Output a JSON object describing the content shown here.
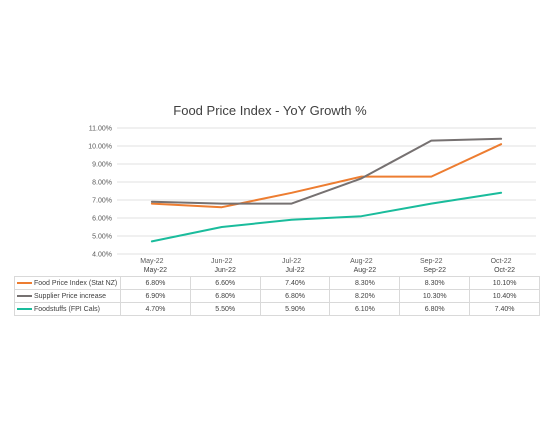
{
  "chart_data": {
    "type": "line",
    "title": "Food Price Index - YoY Growth %",
    "categories": [
      "May-22",
      "Jun-22",
      "Jul-22",
      "Aug-22",
      "Sep-22",
      "Oct-22"
    ],
    "series": [
      {
        "name": "Food Price Index (Stat NZ)",
        "color": "#ed7d31",
        "values": [
          6.8,
          6.6,
          7.4,
          8.3,
          8.3,
          10.1
        ],
        "labels": [
          "6.80%",
          "6.60%",
          "7.40%",
          "8.30%",
          "8.30%",
          "10.10%"
        ]
      },
      {
        "name": "Supplier Price increase",
        "color": "#767171",
        "values": [
          6.9,
          6.8,
          6.8,
          8.2,
          10.3,
          10.4
        ],
        "labels": [
          "6.90%",
          "6.80%",
          "6.80%",
          "8.20%",
          "10.30%",
          "10.40%"
        ]
      },
      {
        "name": "Foodstuffs (FPI Cals)",
        "color": "#1abc9c",
        "values": [
          4.7,
          5.5,
          5.9,
          6.1,
          6.8,
          7.4
        ],
        "labels": [
          "4.70%",
          "5.50%",
          "5.90%",
          "6.10%",
          "6.80%",
          "7.40%"
        ]
      }
    ],
    "ylim": [
      4,
      11
    ],
    "yticks": [
      4,
      5,
      6,
      7,
      8,
      9,
      10,
      11
    ],
    "ytick_labels": [
      "4.00%",
      "5.00%",
      "6.00%",
      "7.00%",
      "8.00%",
      "9.00%",
      "10.00%",
      "11.00%"
    ],
    "grid": "horizontal",
    "legend": "data table below chart"
  }
}
